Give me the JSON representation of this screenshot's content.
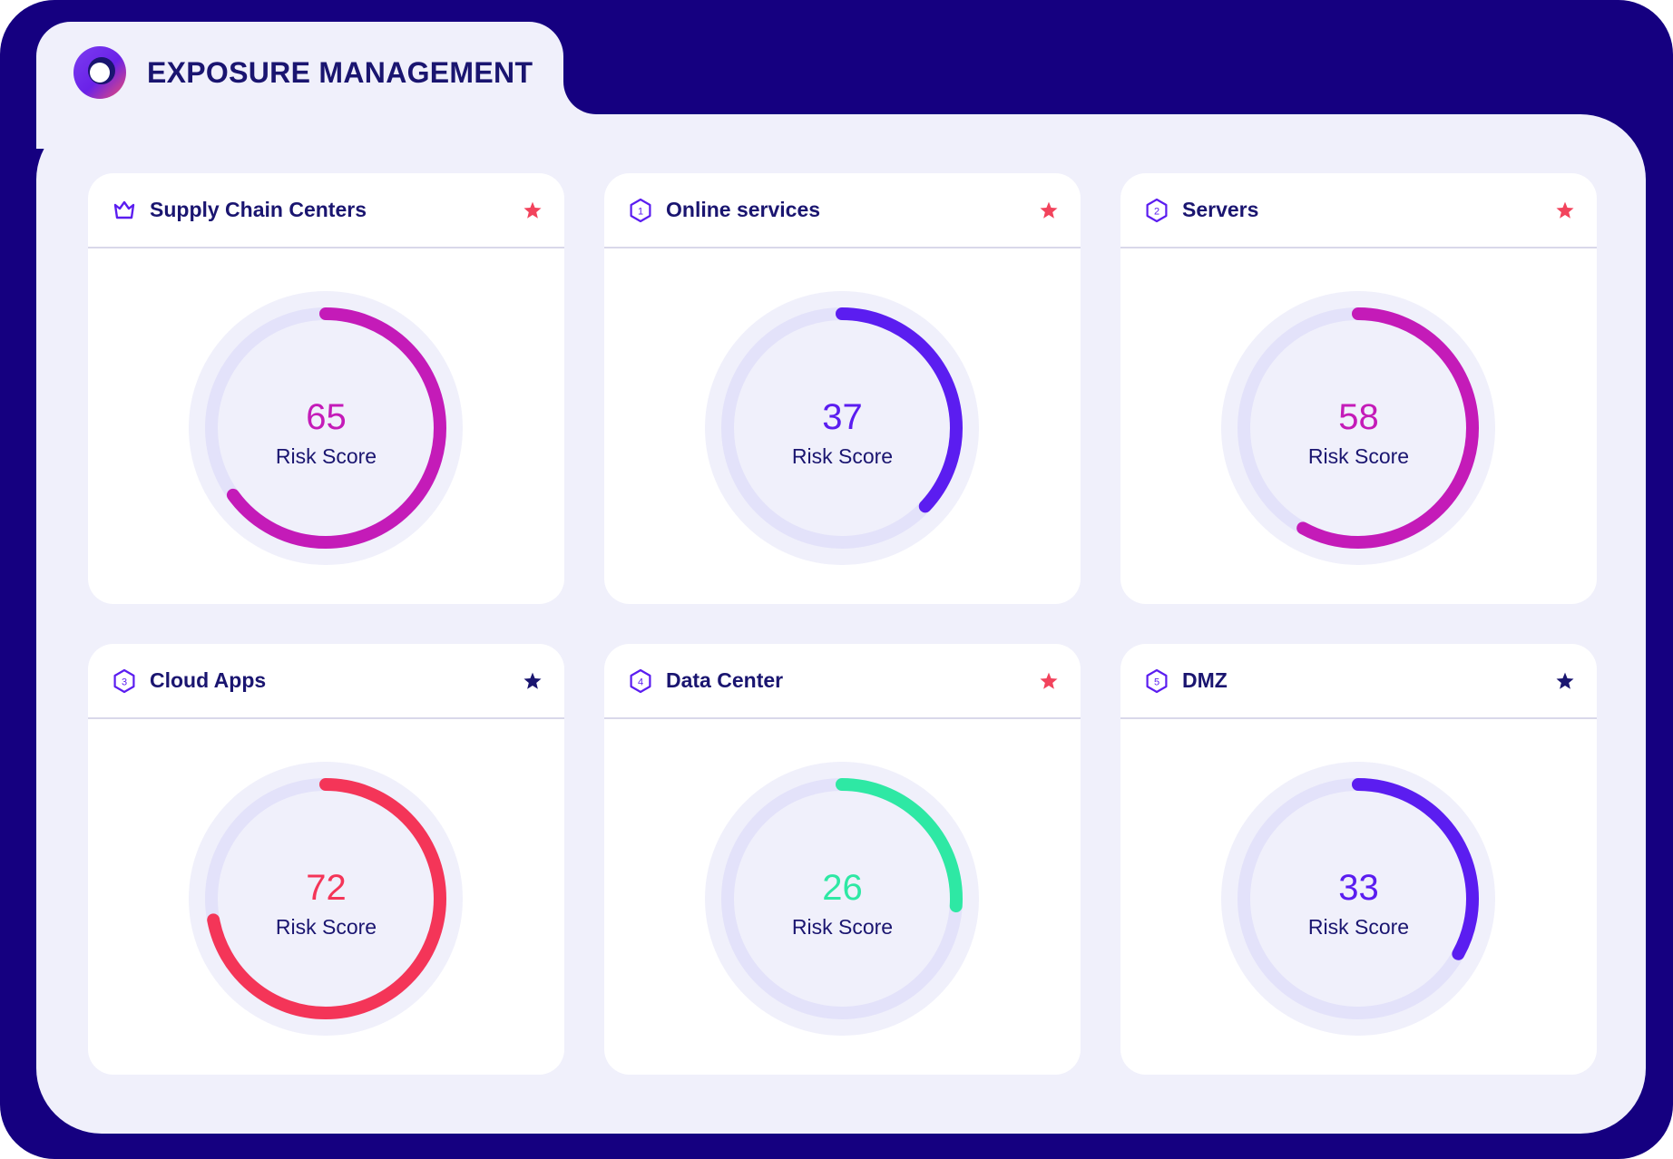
{
  "app": {
    "title": "EXPOSURE MANAGEMENT",
    "logo_icon": "ring-logo-icon"
  },
  "colors": {
    "frame": "#150080",
    "panel": "#f0f0fb",
    "text": "#1a1570",
    "track": "#e3e2fa",
    "track_bg": "#f0f0fb",
    "star_red": "#f2435c",
    "star_navy": "#1a1570"
  },
  "cards": [
    {
      "title": "Supply Chain Centers",
      "icon": "crown-icon",
      "badge": "",
      "starred": true,
      "score": 65,
      "score_label": "Risk Score",
      "color": "#c41bb8"
    },
    {
      "title": "Online services",
      "icon": "hexagon-badge-icon",
      "badge": "1",
      "starred": true,
      "score": 37,
      "score_label": "Risk Score",
      "color": "#5b1df0"
    },
    {
      "title": "Servers",
      "icon": "hexagon-badge-icon",
      "badge": "2",
      "starred": true,
      "score": 58,
      "score_label": "Risk Score",
      "color": "#c41bb8"
    },
    {
      "title": "Cloud Apps",
      "icon": "hexagon-badge-icon",
      "badge": "3",
      "starred": false,
      "score": 72,
      "score_label": "Risk Score",
      "color": "#f43558"
    },
    {
      "title": "Data Center",
      "icon": "hexagon-badge-icon",
      "badge": "4",
      "starred": true,
      "score": 26,
      "score_label": "Risk Score",
      "color": "#2ee8a4"
    },
    {
      "title": "DMZ",
      "icon": "hexagon-badge-icon",
      "badge": "5",
      "starred": false,
      "score": 33,
      "score_label": "Risk Score",
      "color": "#5b1df0"
    }
  ]
}
